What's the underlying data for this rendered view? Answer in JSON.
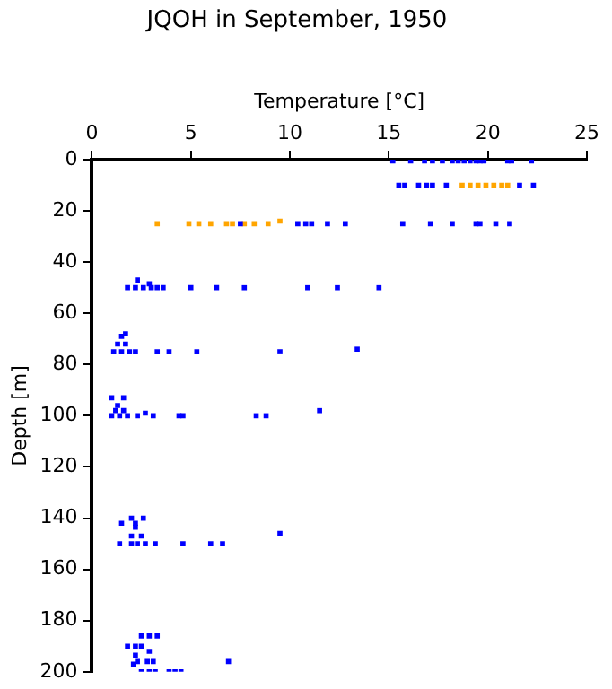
{
  "chart_data": {
    "type": "scatter",
    "title": "JQOH in September, 1950",
    "xlabel": "Temperature [°C]",
    "ylabel": "Depth [m]",
    "xlim": [
      0,
      25
    ],
    "xticks": [
      0,
      5,
      10,
      15,
      20,
      25
    ],
    "ylim": [
      200,
      0
    ],
    "yticks": [
      0,
      20,
      40,
      60,
      80,
      100,
      120,
      140,
      160,
      180,
      200
    ],
    "grid": false,
    "legend": false,
    "marker": "square",
    "series": [
      {
        "color": "#0000ff",
        "x": [
          15.2,
          16.1,
          16.8,
          17.2,
          17.7,
          18.2,
          18.5,
          18.8,
          19.1,
          19.4,
          19.6,
          19.8,
          21.0,
          21.2,
          22.2,
          15.5,
          15.8,
          16.5,
          16.9,
          17.2,
          17.9,
          21.6,
          22.3,
          7.5,
          10.4,
          10.8,
          11.1,
          11.9,
          12.8,
          15.7,
          17.1,
          18.2,
          19.4,
          19.6,
          20.4,
          21.1,
          1.8,
          2.2,
          2.6,
          3.0,
          3.3,
          3.6,
          5.0,
          6.3,
          7.7,
          10.9,
          12.4,
          14.5,
          2.3,
          2.9,
          1.1,
          1.5,
          1.9,
          2.2,
          3.3,
          3.9,
          5.3,
          9.5,
          13.4,
          1.3,
          1.7,
          1.5,
          1.7,
          1.0,
          1.4,
          1.8,
          2.3,
          2.7,
          3.1,
          4.4,
          4.6,
          8.3,
          8.8,
          11.5,
          1.0,
          1.6,
          1.3,
          1.2,
          1.6,
          1.4,
          2.0,
          2.3,
          2.7,
          3.2,
          4.6,
          6.0,
          6.6,
          9.5,
          2.0,
          2.5,
          2.2,
          1.5,
          2.2,
          2.0,
          2.6,
          2.5,
          2.9,
          3.3,
          1.8,
          2.2,
          2.5,
          2.9,
          2.2,
          2.3,
          2.8,
          3.1,
          6.9,
          2.1,
          2.5,
          2.9,
          3.2,
          3.9,
          4.2,
          4.5
        ],
        "values": [
          0.5,
          0.5,
          0.5,
          0.5,
          0.5,
          0.5,
          0.5,
          0.5,
          0.5,
          0.5,
          0.5,
          0.5,
          0.5,
          0.5,
          0.5,
          10,
          10,
          10,
          10,
          10,
          10,
          10,
          10,
          25,
          25,
          25,
          25,
          25,
          25,
          25,
          25,
          25,
          25,
          25,
          25,
          25,
          50,
          50,
          50,
          50,
          50,
          50,
          50,
          50,
          50,
          50,
          50,
          50,
          47,
          48.5,
          75,
          75,
          75,
          75,
          75,
          75,
          75,
          75,
          74,
          72,
          72,
          69,
          68,
          100,
          100,
          100,
          100,
          99,
          100,
          100,
          100,
          100,
          100,
          98,
          93,
          93,
          96,
          98,
          98,
          150,
          150,
          150,
          150,
          150,
          150,
          150,
          150,
          146,
          147,
          147,
          143.5,
          142,
          142,
          140,
          140,
          186,
          186,
          186,
          190,
          190,
          190,
          192,
          193.5,
          196,
          196,
          196,
          196,
          197,
          200,
          200,
          200,
          200,
          200,
          200
        ]
      },
      {
        "color": "#ffa500",
        "x": [
          18.7,
          19.1,
          19.5,
          19.9,
          20.3,
          20.7,
          21.0,
          3.3,
          4.9,
          5.4,
          6.0,
          6.8,
          7.1,
          7.7,
          8.2,
          8.9,
          9.5
        ],
        "values": [
          10,
          10,
          10,
          10,
          10,
          10,
          10,
          25,
          25,
          25,
          25,
          25,
          25,
          25,
          25,
          25,
          24
        ]
      }
    ]
  }
}
